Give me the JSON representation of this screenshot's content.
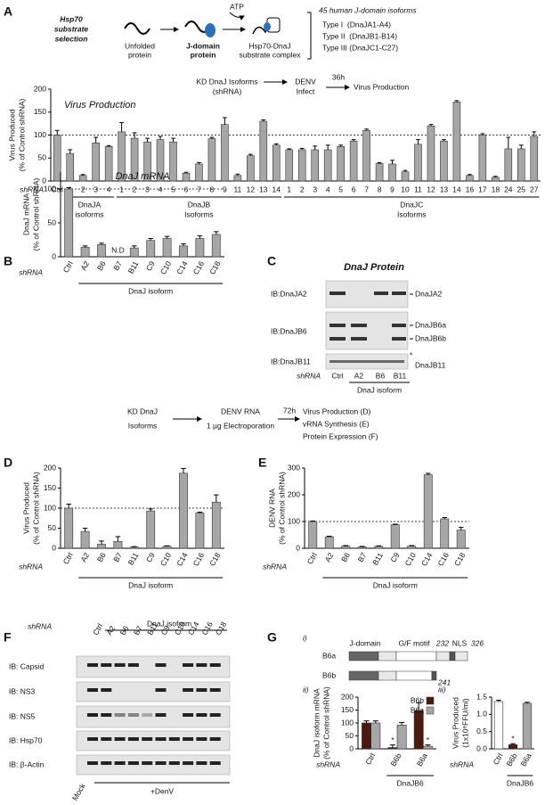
{
  "figure": {
    "panel_labels": [
      "A",
      "B",
      "C",
      "D",
      "E",
      "F",
      "G"
    ],
    "schematic_a": {
      "title": [
        "Hsp70",
        "substrate",
        "selection"
      ],
      "unfolded": [
        "Unfolded",
        "protein"
      ],
      "jdomain": [
        "J-domain",
        "protein"
      ],
      "atp": "ATP",
      "complex": [
        "Hsp70-DnaJ",
        "substrate complex"
      ],
      "isoforms_title": "45 human J-domain isoforms",
      "types": [
        "Type I  (DnaJA1-A4)",
        "Type II  (DnaJB1-B14)",
        "Type III (DnaJC1-C27)"
      ]
    },
    "flow_a": {
      "step1": [
        "KD DnaJ Isoforms",
        "(shRNA)"
      ],
      "step2": [
        "DENV",
        "Infect"
      ],
      "time": "36h",
      "step3": "Virus Production"
    },
    "blot_c": {
      "title": "DnaJ Protein",
      "rows": [
        "IB:DnaJA2",
        "IB:DnaJB6",
        "IB:DnaJB11"
      ],
      "bands": [
        "DnaJA2",
        "DnaJB6a",
        "DnaJB6b",
        "DnaJB11"
      ],
      "star": "*",
      "x_label": "shRNA",
      "lanes": [
        "Ctrl",
        "A2",
        "B6",
        "B11"
      ],
      "group": "DnaJ isoform"
    },
    "flow_d": {
      "step1": [
        "KD DnaJ",
        "Isoforms"
      ],
      "step2": [
        "DENV RNA",
        "1 µg Electroporation"
      ],
      "time": "72h",
      "outcomes": [
        "Virus Production (D)",
        "vRNA Synthesis (E)",
        "Protein Expression (F)"
      ]
    },
    "blot_f": {
      "x_label": "shRNA",
      "group": "DnaJ isoform",
      "lanes": [
        "Ctrl",
        "A2",
        "B6",
        "B7",
        "B11",
        "C9",
        "C10",
        "C14",
        "C16",
        "C18"
      ],
      "rows": [
        "IB: Capsid",
        "IB: NS3",
        "IB: NS5",
        "IB: Hsp70",
        "IB: β-Actin"
      ],
      "mock": "Mock",
      "treatment": "+DenV"
    },
    "diagram_g": {
      "label": "i)",
      "rows": [
        "B6a",
        "B6b"
      ],
      "domains": [
        "J-domain",
        "G/F motif",
        "NLS"
      ],
      "positions": [
        "232",
        "326",
        "241"
      ]
    },
    "sub_labels": [
      "ii)",
      "iii)"
    ]
  },
  "chart_data": [
    {
      "type": "bar",
      "title": "Virus Production",
      "ylabel": [
        "Virus Produced",
        "(% of Control shRNA)"
      ],
      "x_label": "shRNA",
      "categories": [
        "Ctrl",
        "1",
        "2",
        "3",
        "4",
        "1",
        "2",
        "3",
        "4",
        "5",
        "6",
        "7",
        "8",
        "9",
        "11",
        "12",
        "13",
        "14",
        "1",
        "2",
        "3",
        "4",
        "5",
        "6",
        "7",
        "8",
        "9",
        "10",
        "11",
        "12",
        "13",
        "14",
        "16",
        "17",
        "18",
        "24",
        "25",
        "27"
      ],
      "values": [
        100,
        60,
        12,
        83,
        75,
        107,
        93,
        85,
        90,
        85,
        17,
        37,
        92,
        123,
        12,
        55,
        130,
        78,
        68,
        68,
        68,
        68,
        75,
        87,
        110,
        38,
        37,
        20,
        80,
        120,
        87,
        172,
        12,
        100,
        8,
        70,
        70,
        97
      ],
      "errors": [
        10,
        8,
        2,
        12,
        2,
        20,
        12,
        8,
        7,
        8,
        2,
        3,
        3,
        15,
        3,
        3,
        3,
        3,
        2,
        3,
        8,
        10,
        3,
        3,
        3,
        2,
        8,
        3,
        10,
        3,
        3,
        3,
        2,
        3,
        2,
        25,
        8,
        10
      ],
      "color": "#a6a6a6",
      "ylim": [
        0,
        200
      ],
      "yticks": [
        0,
        50,
        100,
        150,
        200
      ],
      "hline": 100,
      "groups": [
        {
          "label": [
            "DnaJA",
            "isoforms"
          ],
          "span": [
            1,
            4
          ]
        },
        {
          "label": [
            "DnaJB",
            "Isoforms"
          ],
          "span": [
            5,
            17
          ]
        },
        {
          "label": [
            "DnaJC",
            "Isoforms"
          ],
          "span": [
            18,
            37
          ]
        }
      ]
    },
    {
      "type": "bar",
      "title": "DnaJ mRNA",
      "ylabel": [
        "DnaJ mRNA",
        "(% of Control shRNA)"
      ],
      "x_label": "shRNA",
      "categories": [
        "Ctrl",
        "A2",
        "B6",
        "B7",
        "B11",
        "C9",
        "C10",
        "C14",
        "C16",
        "C18"
      ],
      "values": [
        100,
        14,
        18,
        null,
        13,
        24,
        27,
        16,
        27,
        33
      ],
      "errors": [
        2,
        2,
        2,
        null,
        3,
        3,
        3,
        3,
        4,
        4
      ],
      "value_labels": [
        null,
        null,
        null,
        "N.D",
        null,
        null,
        null,
        null,
        null,
        null
      ],
      "color": "#a6a6a6",
      "ylim": [
        0,
        125
      ],
      "yticks": [
        0,
        50,
        100
      ],
      "hline": 100,
      "groups": [
        {
          "label": [
            "DnaJ isoform"
          ],
          "span": [
            1,
            9
          ]
        }
      ]
    },
    {
      "type": "bar",
      "ylabel": [
        "Virus Produced",
        "(% of Control shRNA)"
      ],
      "x_label": "shRNA",
      "categories": [
        "Ctrl",
        "A2",
        "B6",
        "B7",
        "B11",
        "C9",
        "C10",
        "C14",
        "C16",
        "C18"
      ],
      "values": [
        100,
        42,
        10,
        17,
        3,
        93,
        5,
        187,
        88,
        115
      ],
      "errors": [
        10,
        8,
        8,
        12,
        1,
        5,
        1,
        12,
        2,
        18
      ],
      "color": "#a6a6a6",
      "ylim": [
        0,
        200
      ],
      "yticks": [
        0,
        50,
        100,
        150,
        200
      ],
      "hline": 100,
      "groups": [
        {
          "label": [
            "DnaJ isoform"
          ],
          "span": [
            1,
            9
          ]
        }
      ]
    },
    {
      "type": "bar",
      "ylabel": [
        "DENV RNA",
        "(% of Control shRNA)"
      ],
      "x_label": "shRNA",
      "categories": [
        "Ctrl",
        "A2",
        "B6",
        "B7",
        "B11",
        "C9",
        "C10",
        "C14",
        "C16",
        "C18"
      ],
      "values": [
        100,
        43,
        8,
        5,
        7,
        88,
        8,
        275,
        110,
        68
      ],
      "errors": [
        2,
        2,
        2,
        2,
        2,
        2,
        2,
        5,
        5,
        10
      ],
      "color": "#a6a6a6",
      "ylim": [
        0,
        300
      ],
      "yticks": [
        0,
        100,
        200,
        300
      ],
      "hline": 100,
      "groups": [
        {
          "label": [
            "DnaJ isoform"
          ],
          "span": [
            1,
            9
          ]
        }
      ]
    },
    {
      "type": "bar",
      "ylabel": [
        "DnaJ isoform mRNA",
        "(% of Control shRNA)"
      ],
      "x_label": "shRNA",
      "categories": [
        "Ctrl",
        "B6b",
        "B6a"
      ],
      "series": [
        {
          "name": "B6b",
          "color": "#4a1a0e",
          "values": [
            100,
            5,
            148
          ],
          "errors": [
            8,
            10,
            30
          ]
        },
        {
          "name": "B6a",
          "color": "#a6a6a6",
          "values": [
            100,
            92,
            10
          ],
          "errors": [
            8,
            10,
            5
          ]
        }
      ],
      "ylim": [
        0,
        200
      ],
      "yticks": [
        0,
        50,
        100,
        150,
        200
      ],
      "annotations": [
        {
          "text": "*",
          "category": 1,
          "series": 0
        },
        {
          "text": "*",
          "category": 2,
          "series": 1
        }
      ],
      "groups": [
        {
          "label": [
            "DnaJB6"
          ],
          "span": [
            1,
            2
          ]
        }
      ]
    },
    {
      "type": "bar",
      "ylabel": [
        "Virus Produced",
        "(1x10⁶FFU/ml)"
      ],
      "x_label": "shRNA",
      "categories": [
        "Ctrl",
        "B6b",
        "B6a"
      ],
      "values": [
        1.37,
        0.12,
        1.32
      ],
      "errors": [
        0.04,
        0.03,
        0.03
      ],
      "colors": [
        "#ffffff",
        "#4a1a0e",
        "#a6a6a6"
      ],
      "ylim": [
        0,
        1.5
      ],
      "yticks": [
        {
          "value": 0,
          "label": "0.0"
        },
        {
          "value": 0.5,
          "label": "0.5"
        },
        {
          "value": 1,
          "label": "1.0"
        },
        {
          "value": 1.5,
          "label": "1.5"
        }
      ],
      "annotations": [
        {
          "text": "*",
          "category": 1
        }
      ],
      "groups": [
        {
          "label": [
            "DnaJB6"
          ],
          "span": [
            1,
            2
          ]
        }
      ]
    }
  ]
}
